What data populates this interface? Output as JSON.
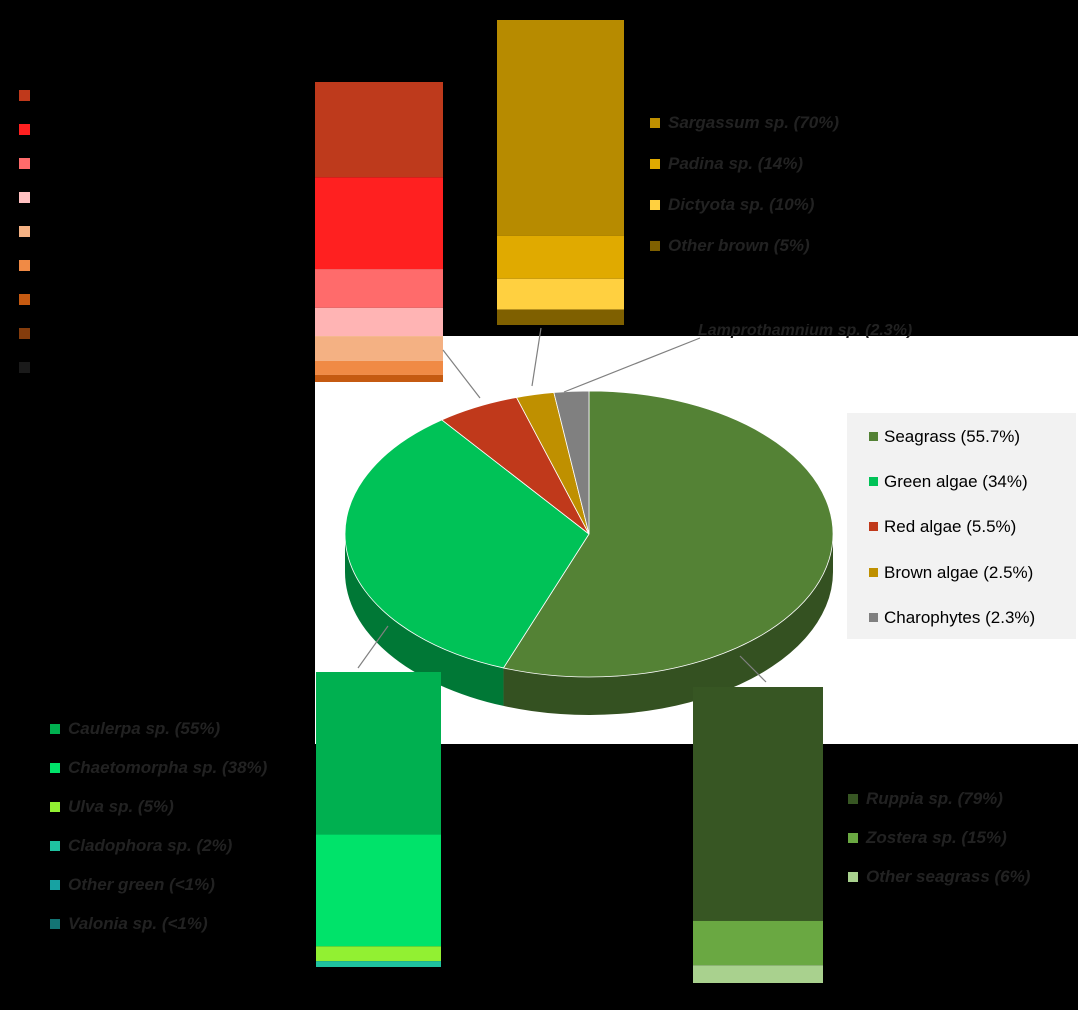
{
  "chart_data": [
    {
      "type": "pie",
      "title": "",
      "slices": [
        {
          "label": "Seagrass (55.7%)",
          "value": 55.7,
          "color": "#548235"
        },
        {
          "label": "Green algae (34%)",
          "value": 34,
          "color": "#00c257"
        },
        {
          "label": "Red algae (5.5%)",
          "value": 5.5,
          "color": "#c0391b"
        },
        {
          "label": "Brown algae (2.5%)",
          "value": 2.5,
          "color": "#bf9000"
        },
        {
          "label": "Charophytes (2.3%)",
          "value": 2.3,
          "color": "#808080"
        }
      ],
      "legend_placement": "right",
      "view": "3d-tilted"
    },
    {
      "type": "bar",
      "subtype": "stacked-single-column",
      "breakdown_of": "Red algae (5.5%)",
      "segments": [
        {
          "value": 27,
          "color": "#be3a1c"
        },
        {
          "value": 26,
          "color": "#ff2020"
        },
        {
          "value": 11,
          "color": "#ff6b6b"
        },
        {
          "value": 8,
          "color": "#ffb4b4"
        },
        {
          "value": 7,
          "color": "#f4b183"
        },
        {
          "value": 4,
          "color": "#f08a45"
        },
        {
          "value": 2,
          "color": "#c55a11"
        }
      ]
    },
    {
      "type": "bar",
      "subtype": "stacked-single-column",
      "breakdown_of": "Brown algae (2.5%)",
      "segments": [
        {
          "value": 70,
          "color": "#b78b00"
        },
        {
          "value": 14,
          "color": "#e0aa00"
        },
        {
          "value": 10,
          "color": "#ffd040"
        },
        {
          "value": 5,
          "color": "#7f6000"
        }
      ]
    },
    {
      "type": "bar",
      "subtype": "stacked-single-column",
      "breakdown_of": "Green algae (34%)",
      "segments": [
        {
          "value": 55,
          "color": "#00b050"
        },
        {
          "value": 38,
          "color": "#00e36a"
        },
        {
          "value": 5,
          "color": "#92f032"
        },
        {
          "value": 2,
          "color": "#1fc2a0"
        }
      ]
    },
    {
      "type": "bar",
      "subtype": "stacked-single-column",
      "breakdown_of": "Seagrass (55.7%)",
      "segments": [
        {
          "value": 79,
          "color": "#375623"
        },
        {
          "value": 15,
          "color": "#6aa842"
        },
        {
          "value": 6,
          "color": "#a9d18e"
        }
      ]
    }
  ],
  "callout": "Lamprothamnium sp. (2.3%)",
  "obscured_legends": {
    "red": [
      "#c0391b",
      "#ff2020",
      "#ff6b6b",
      "#ffc0c0",
      "#f4b183",
      "#f08a45",
      "#c55a11",
      "#843c0c",
      "#1a1a1a"
    ],
    "brown": [
      {
        "color": "#bf9000",
        "text": "Sargassum sp. (70%)"
      },
      {
        "color": "#e0aa00",
        "text": "Padina sp. (14%)"
      },
      {
        "color": "#ffd040",
        "text": "Dictyota sp. (10%)"
      },
      {
        "color": "#7f6000",
        "text": "Other brown (5%)"
      }
    ],
    "green": [
      {
        "color": "#00b050",
        "text": "Caulerpa sp. (55%)"
      },
      {
        "color": "#00e36a",
        "text": "Chaetomorpha sp. (38%)"
      },
      {
        "color": "#92f032",
        "text": "Ulva sp. (5%)"
      },
      {
        "color": "#1fc2a0",
        "text": "Cladophora sp. (2%)"
      },
      {
        "color": "#17a2a2",
        "text": "Other green (<1%)"
      },
      {
        "color": "#137474",
        "text": "Valonia sp. (<1%)"
      }
    ],
    "seagrass": [
      {
        "color": "#375623",
        "text": "Ruppia sp. (79%)"
      },
      {
        "color": "#6aa842",
        "text": "Zostera sp. (15%)"
      },
      {
        "color": "#a9d18e",
        "text": "Other seagrass (6%)"
      }
    ]
  }
}
